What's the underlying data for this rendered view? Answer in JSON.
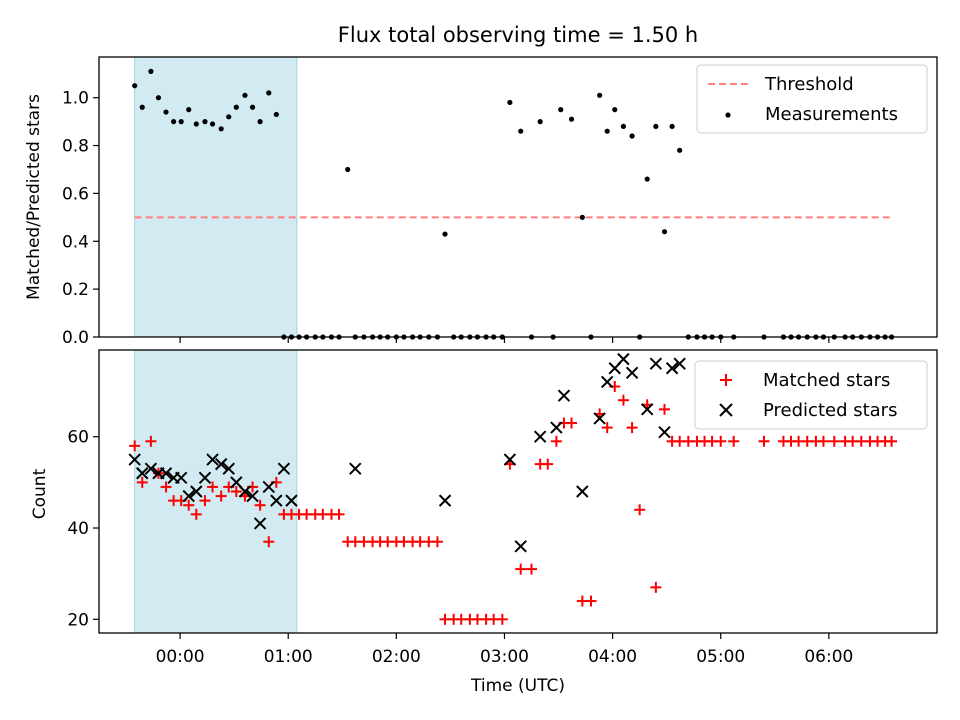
{
  "chart_data": [
    {
      "type": "scatter",
      "title": "Flux total observing time = 1.50 h",
      "xlabel": "",
      "ylabel": "Matched/Predicted stars",
      "ylim": [
        0,
        1.17
      ],
      "xlim": [
        -0.75,
        7.0
      ],
      "yticks": [
        0.0,
        0.2,
        0.4,
        0.6,
        0.8,
        1.0
      ],
      "ytick_labels": [
        "0.0",
        "0.2",
        "0.4",
        "0.6",
        "0.8",
        "1.0"
      ],
      "shaded_region": {
        "x": [
          -0.42,
          1.08
        ],
        "color": "#add8e6"
      },
      "legend": {
        "position": "top-right",
        "entries": [
          "Threshold",
          "Measurements"
        ]
      },
      "series": [
        {
          "name": "Threshold",
          "kind": "dashed-line",
          "color": "#ff7f7f",
          "x": [
            -0.42,
            6.58
          ],
          "y": [
            0.5,
            0.5
          ]
        },
        {
          "name": "Measurements",
          "kind": "points",
          "color": "#000000",
          "x": [
            -0.42,
            -0.35,
            -0.27,
            -0.2,
            -0.13,
            -0.06,
            0.01,
            0.08,
            0.15,
            0.23,
            0.3,
            0.38,
            0.45,
            0.52,
            0.6,
            0.67,
            0.74,
            0.82,
            0.89,
            0.96,
            1.03,
            1.1,
            1.17,
            1.25,
            1.32,
            1.4,
            1.47,
            1.55,
            1.62,
            1.7,
            1.78,
            1.85,
            1.92,
            2.0,
            2.07,
            2.15,
            2.22,
            2.3,
            2.38,
            2.45,
            2.53,
            2.6,
            2.68,
            2.75,
            2.83,
            2.9,
            2.98,
            3.05,
            3.15,
            3.25,
            3.33,
            3.45,
            3.52,
            3.62,
            3.72,
            3.8,
            3.88,
            3.95,
            4.02,
            4.1,
            4.18,
            4.25,
            4.32,
            4.4,
            4.48,
            4.55,
            4.62,
            4.7,
            4.78,
            4.85,
            4.92,
            5.0,
            5.12,
            5.4,
            5.58,
            5.65,
            5.72,
            5.8,
            5.88,
            5.95,
            6.05,
            6.15,
            6.22,
            6.3,
            6.38,
            6.45,
            6.52,
            6.58
          ],
          "y": [
            1.05,
            0.96,
            1.11,
            1.0,
            0.94,
            0.9,
            0.9,
            0.95,
            0.89,
            0.9,
            0.89,
            0.87,
            0.92,
            0.96,
            1.01,
            0.96,
            0.9,
            1.02,
            0.93,
            0.0,
            0.0,
            0.0,
            0.0,
            0.0,
            0.0,
            0.0,
            0.0,
            0.7,
            0.0,
            0.0,
            0.0,
            0.0,
            0.0,
            0.0,
            0.0,
            0.0,
            0.0,
            0.0,
            0.0,
            0.43,
            0.0,
            0.0,
            0.0,
            0.0,
            0.0,
            0.0,
            0.0,
            0.98,
            0.86,
            0.0,
            0.9,
            0.0,
            0.95,
            0.91,
            0.5,
            0.0,
            1.01,
            0.86,
            0.95,
            0.88,
            0.84,
            0.0,
            0.66,
            0.88,
            0.44,
            0.88,
            0.78,
            0.0,
            0.0,
            0.0,
            0.0,
            0.0,
            0.0,
            0.0,
            0.0,
            0.0,
            0.0,
            0.0,
            0.0,
            0.0,
            0.0,
            0.0,
            0.0,
            0.0,
            0.0,
            0.0,
            0.0,
            0.0
          ]
        }
      ]
    },
    {
      "type": "scatter",
      "title": "",
      "xlabel": "Time (UTC)",
      "ylabel": "Count",
      "ylim": [
        17,
        79
      ],
      "xlim": [
        -0.75,
        7.0
      ],
      "yticks": [
        20,
        40,
        60
      ],
      "ytick_labels": [
        "20",
        "40",
        "60"
      ],
      "xticks": [
        0,
        1,
        2,
        3,
        4,
        5,
        6
      ],
      "xtick_labels": [
        "00:00",
        "01:00",
        "02:00",
        "03:00",
        "04:00",
        "05:00",
        "06:00"
      ],
      "shaded_region": {
        "x": [
          -0.42,
          1.08
        ],
        "color": "#add8e6"
      },
      "legend": {
        "position": "top-right",
        "entries": [
          "Matched stars",
          "Predicted stars"
        ]
      },
      "series": [
        {
          "name": "Matched stars",
          "kind": "plus",
          "color": "#ff0000",
          "x": [
            -0.42,
            -0.35,
            -0.27,
            -0.2,
            -0.13,
            -0.06,
            0.01,
            0.08,
            0.15,
            0.23,
            0.3,
            0.38,
            0.45,
            0.52,
            0.6,
            0.67,
            0.74,
            0.82,
            0.89,
            0.96,
            1.03,
            1.1,
            1.17,
            1.25,
            1.32,
            1.4,
            1.47,
            1.55,
            1.62,
            1.7,
            1.78,
            1.85,
            1.92,
            2.0,
            2.07,
            2.15,
            2.22,
            2.3,
            2.38,
            2.45,
            2.53,
            2.6,
            2.68,
            2.75,
            2.83,
            2.9,
            2.98,
            3.05,
            3.15,
            3.25,
            3.33,
            3.4,
            3.48,
            3.55,
            3.62,
            3.72,
            3.8,
            3.88,
            3.95,
            4.02,
            4.1,
            4.18,
            4.25,
            4.32,
            4.4,
            4.48,
            4.55,
            4.62,
            4.7,
            4.78,
            4.85,
            4.92,
            5.0,
            5.12,
            5.4,
            5.58,
            5.65,
            5.72,
            5.8,
            5.88,
            5.95,
            6.05,
            6.15,
            6.22,
            6.3,
            6.38,
            6.45,
            6.52,
            6.58
          ],
          "y": [
            58,
            50,
            59,
            52,
            49,
            46,
            46,
            45,
            43,
            46,
            49,
            47,
            49,
            48,
            47,
            49,
            45,
            37,
            50,
            43,
            43,
            43,
            43,
            43,
            43,
            43,
            43,
            37,
            37,
            37,
            37,
            37,
            37,
            37,
            37,
            37,
            37,
            37,
            37,
            20,
            20,
            20,
            20,
            20,
            20,
            20,
            20,
            54,
            31,
            31,
            54,
            54,
            59,
            63,
            63,
            24,
            24,
            65,
            62,
            71,
            68,
            62,
            44,
            67,
            27,
            66,
            59,
            59,
            59,
            59,
            59,
            59,
            59,
            59,
            59,
            59,
            59,
            59,
            59,
            59,
            59,
            59,
            59,
            59,
            59,
            59,
            59,
            59,
            59
          ]
        },
        {
          "name": "Predicted stars",
          "kind": "cross",
          "color": "#000000",
          "x": [
            -0.42,
            -0.35,
            -0.27,
            -0.2,
            -0.13,
            -0.06,
            0.01,
            0.08,
            0.15,
            0.23,
            0.3,
            0.38,
            0.45,
            0.52,
            0.6,
            0.67,
            0.74,
            0.82,
            0.89,
            0.96,
            1.03,
            1.62,
            2.45,
            3.05,
            3.15,
            3.33,
            3.48,
            3.55,
            3.72,
            3.88,
            3.95,
            4.02,
            4.1,
            4.18,
            4.32,
            4.4,
            4.48,
            4.55,
            4.62
          ],
          "y": [
            55,
            52,
            53,
            52,
            52,
            51,
            51,
            47,
            48,
            51,
            55,
            54,
            53,
            50,
            48,
            47,
            41,
            49,
            46,
            53,
            46,
            53,
            46,
            55,
            36,
            60,
            62,
            69,
            48,
            64,
            72,
            75,
            77,
            74,
            66,
            76,
            61,
            75,
            76
          ]
        }
      ]
    }
  ]
}
